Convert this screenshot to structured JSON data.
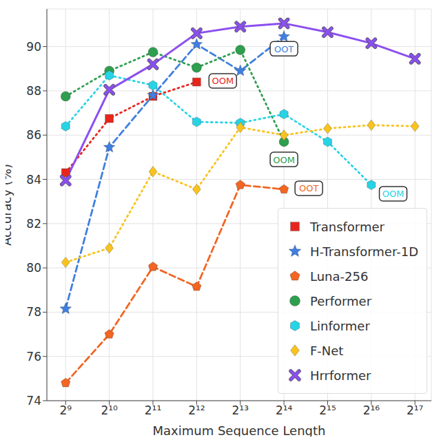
{
  "chart_data": {
    "type": "line",
    "x_label": "Maximum Sequence Length",
    "y_label": "Accuracy (%)",
    "x": [
      512,
      1024,
      2048,
      4096,
      8192,
      16384,
      32768,
      65536,
      131072
    ],
    "xlim": [
      380,
      170000
    ],
    "ylim": [
      74,
      91.7
    ],
    "xticks": [
      {
        "value": 512,
        "label": "2⁹"
      },
      {
        "value": 1024,
        "label": "2¹⁰"
      },
      {
        "value": 2048,
        "label": "2¹¹"
      },
      {
        "value": 4096,
        "label": "2¹²"
      },
      {
        "value": 8192,
        "label": "2¹³"
      },
      {
        "value": 16384,
        "label": "2¹⁴"
      },
      {
        "value": 32768,
        "label": "2¹⁵"
      },
      {
        "value": 65536,
        "label": "2¹⁶"
      },
      {
        "value": 131072,
        "label": "2¹⁷"
      }
    ],
    "yticks": [
      74,
      76,
      78,
      80,
      82,
      84,
      86,
      88,
      90
    ],
    "log": "x",
    "grid": true,
    "legend": "lower right",
    "series": [
      {
        "name": "Transformer",
        "color": "#e8251c",
        "marker": "square",
        "line_style": "dotted",
        "values": [
          84.3,
          86.75,
          87.75,
          88.4,
          null,
          null,
          null,
          null,
          null
        ]
      },
      {
        "name": "H-Transformer-1D",
        "color": "#3f7fe0",
        "marker": "star",
        "line_style": "dashed",
        "values": [
          78.15,
          85.45,
          87.8,
          90.1,
          88.9,
          90.45,
          null,
          null,
          null
        ]
      },
      {
        "name": "Luna-256",
        "color": "#f26522",
        "marker": "pentagon",
        "line_style": "dashed",
        "values": [
          74.8,
          77.0,
          80.05,
          79.15,
          83.75,
          83.55,
          null,
          null,
          null
        ]
      },
      {
        "name": "Performer",
        "color": "#2e9e4f",
        "marker": "circle",
        "line_style": "dotted",
        "values": [
          87.75,
          88.9,
          89.75,
          89.05,
          89.85,
          85.7,
          null,
          null,
          null
        ]
      },
      {
        "name": "Linformer",
        "color": "#28d3e6",
        "marker": "hexagon",
        "line_style": "dotted",
        "values": [
          86.4,
          88.7,
          88.25,
          86.6,
          86.55,
          86.95,
          85.7,
          83.75,
          null
        ]
      },
      {
        "name": "F-Net",
        "color": "#f9c31f",
        "marker": "diamond",
        "line_style": "dotted",
        "values": [
          80.25,
          80.9,
          84.35,
          83.55,
          86.35,
          86.0,
          86.3,
          86.45,
          86.4
        ]
      },
      {
        "name": "Hrrformer",
        "color": "#8b4ff0",
        "marker": "x",
        "line_style": "solid",
        "values": [
          83.95,
          88.05,
          89.2,
          90.6,
          90.9,
          91.05,
          90.65,
          90.15,
          89.45
        ]
      }
    ],
    "annotations": [
      {
        "text": "OOM",
        "x": 6200,
        "y": 88.45,
        "color": "#e8251c"
      },
      {
        "text": "OOT",
        "x": 16384,
        "y": 89.9,
        "color": "#3f7fe0"
      },
      {
        "text": "OOM",
        "x": 16384,
        "y": 84.9,
        "color": "#2e9e4f"
      },
      {
        "text": "OOT",
        "x": 24300,
        "y": 83.6,
        "color": "#f26522"
      },
      {
        "text": "OOM",
        "x": 92682,
        "y": 83.35,
        "color": "#28d3e6"
      }
    ]
  }
}
